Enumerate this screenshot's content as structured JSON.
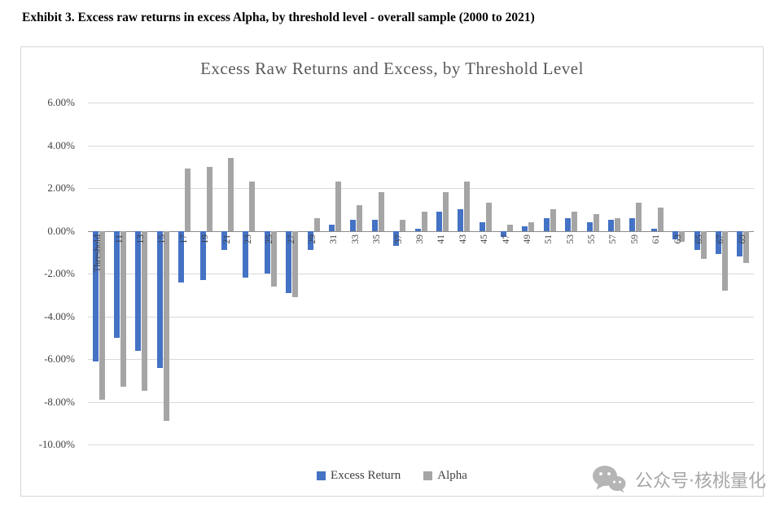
{
  "page": {
    "heading": "Exhibit 3. Excess raw returns in excess Alpha, by threshold level - overall sample (2000 to 2021)"
  },
  "watermark": {
    "icon": "wechat-icon",
    "label": "公众号·核桃量化"
  },
  "chart_data": {
    "type": "bar",
    "title": "Excess Raw Returns and Excess, by Threshold Level",
    "xlabel": "Threshold",
    "ylabel": "",
    "ylim": [
      -10,
      6
    ],
    "ytick_step": 2,
    "ytick_labels": [
      "6.00%",
      "4.00%",
      "2.00%",
      "0.00%",
      "-2.00%",
      "-4.00%",
      "-6.00%",
      "-8.00%",
      "-10.00%"
    ],
    "grid": true,
    "legend_position": "bottom",
    "categories": [
      "Threshold",
      "11",
      "13",
      "15",
      "17",
      "19",
      "21",
      "23",
      "25",
      "27",
      "29",
      "31",
      "33",
      "35",
      "37",
      "39",
      "41",
      "43",
      "45",
      "47",
      "49",
      "51",
      "53",
      "55",
      "57",
      "59",
      "61",
      "63",
      "65",
      "67",
      "69"
    ],
    "series": [
      {
        "name": "Excess Return",
        "color": "#4472C4",
        "values": [
          -6.1,
          -5.0,
          -5.6,
          -6.4,
          -2.4,
          -2.3,
          -0.9,
          -2.2,
          -2.0,
          -2.9,
          -0.9,
          0.3,
          0.5,
          0.5,
          -0.7,
          0.1,
          0.9,
          1.0,
          0.4,
          -0.3,
          0.2,
          0.6,
          0.6,
          0.4,
          0.5,
          0.6,
          0.1,
          -0.4,
          -0.9,
          -1.1,
          -1.2
        ]
      },
      {
        "name": "Alpha",
        "color": "#A5A5A5",
        "values": [
          -7.9,
          -7.3,
          -7.5,
          -8.9,
          2.9,
          3.0,
          3.4,
          2.3,
          -2.6,
          -3.1,
          0.6,
          2.3,
          1.2,
          1.8,
          0.5,
          0.9,
          1.8,
          2.3,
          1.3,
          0.3,
          0.4,
          1.0,
          0.9,
          0.8,
          0.6,
          1.3,
          1.1,
          -0.5,
          -1.3,
          -2.8,
          -1.5
        ]
      }
    ]
  }
}
